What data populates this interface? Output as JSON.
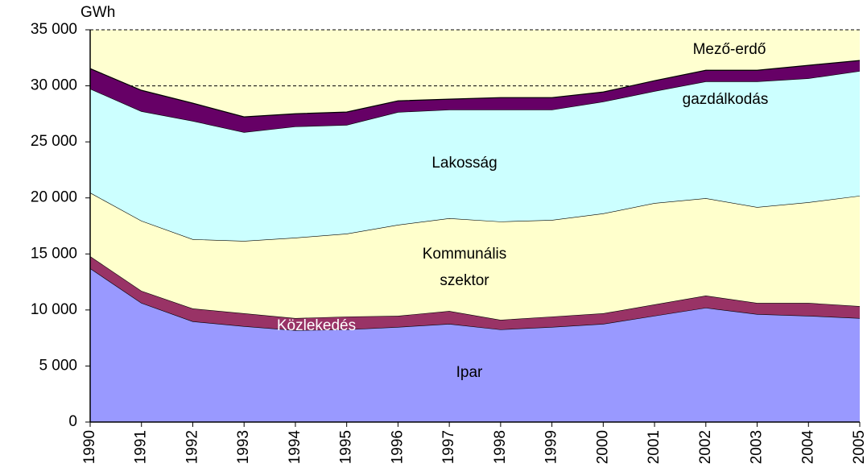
{
  "chart_data": {
    "type": "stacked_area",
    "y_unit": "GWh",
    "categories": [
      "1990",
      "1991",
      "1992",
      "1993",
      "1994",
      "1995",
      "1996",
      "1997",
      "1998",
      "1999",
      "2000",
      "2001",
      "2002",
      "2003",
      "2004",
      "2005"
    ],
    "ylim": [
      0,
      35000
    ],
    "yticks": [
      0,
      {
        "value": 5000,
        "label": "5 000"
      },
      {
        "value": 10000,
        "label": "10 000"
      },
      {
        "value": 15000,
        "label": "15 000"
      },
      {
        "value": 20000,
        "label": "20 000"
      },
      {
        "value": 25000,
        "label": "25 000"
      },
      {
        "value": 30000,
        "label": "30 000"
      },
      {
        "value": 35000,
        "label": "35 000"
      }
    ],
    "grid": true,
    "background": "#ffffd0",
    "series": [
      {
        "labels": [
          "Ipar"
        ],
        "color": "#9999ff",
        "label_color": "#000000",
        "values": [
          13720,
          10630,
          8980,
          8550,
          8190,
          8260,
          8480,
          8760,
          8260,
          8480,
          8760,
          9480,
          10200,
          9630,
          9480,
          9270
        ]
      },
      {
        "labels": [
          "Közlekedés"
        ],
        "color": "#993366",
        "label_color": "#ffffff",
        "values": [
          1080,
          1080,
          1150,
          1150,
          1080,
          1150,
          1000,
          1150,
          860,
          930,
          940,
          1010,
          1080,
          1000,
          1150,
          1070
        ]
      },
      {
        "labels": [
          "Kommunális",
          "szektor"
        ],
        "color": "#ffffcc",
        "label_color": "#000000",
        "values": [
          5670,
          6250,
          6180,
          6460,
          7180,
          7400,
          8120,
          8270,
          8770,
          8620,
          8910,
          9050,
          8690,
          8550,
          8980,
          9850
        ]
      },
      {
        "labels": [
          "Lakosság"
        ],
        "color": "#ccffff",
        "label_color": "#000000",
        "values": [
          9270,
          9770,
          10560,
          9700,
          9920,
          9700,
          10060,
          9690,
          9980,
          9840,
          9980,
          9990,
          10420,
          11210,
          11060,
          11130
        ]
      },
      {
        "labels": [
          "Mező-erdő",
          "gazdálkodás"
        ],
        "color": "#660066",
        "label_color": "#000000",
        "values": [
          1800,
          1870,
          1580,
          1370,
          1140,
          1150,
          1000,
          940,
          1080,
          1080,
          860,
          930,
          1000,
          1000,
          1160,
          940
        ]
      }
    ]
  }
}
